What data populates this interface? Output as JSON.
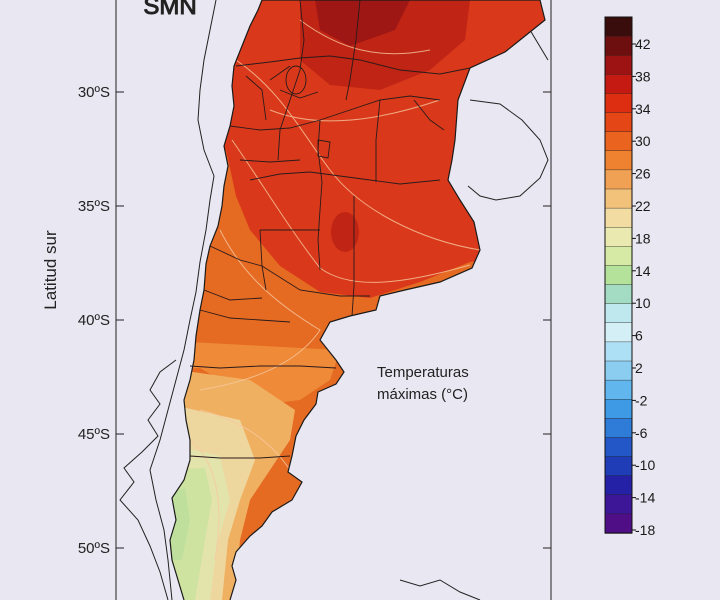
{
  "logo": "SMN",
  "map": {
    "axis_title": "Latitud sur",
    "latitude_labels": [
      "30ºS",
      "35ºS",
      "40ºS",
      "45ºS",
      "50ºS"
    ],
    "annotation": [
      "Temperaturas",
      "máximas (°C)"
    ]
  },
  "legend": {
    "labels": [
      "42",
      "38",
      "34",
      "30",
      "26",
      "22",
      "18",
      "14",
      "10",
      "6",
      "2",
      "-2",
      "-6",
      "-10",
      "-14",
      "-18"
    ],
    "colors": [
      "#3a0d0d",
      "#6e0f0f",
      "#9d1212",
      "#c51a12",
      "#dd2e12",
      "#e44616",
      "#ea6420",
      "#ee8230",
      "#f1a154",
      "#f2c27a",
      "#f2dca2",
      "#eaeab0",
      "#d6eaa5",
      "#b5e29b",
      "#a4dcc3",
      "#bfe7ee",
      "#d4f0f6",
      "#aee0f5",
      "#8bcdf1",
      "#62b6ee",
      "#3f9ae5",
      "#2f7bd8",
      "#2357c8",
      "#1e3db6",
      "#2521a6",
      "#3d1697",
      "#500e86"
    ]
  }
}
